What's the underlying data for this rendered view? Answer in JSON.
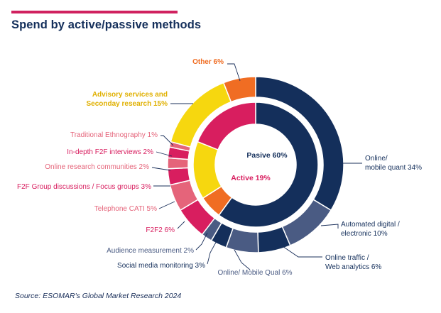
{
  "header": {
    "title": "Spend by active/passive methods",
    "accent_color": "#d0215f"
  },
  "footer": {
    "source": "Source: ESOMAR's Global Market Research 2024"
  },
  "chart_data": {
    "type": "pie",
    "title": "Spend by active/passive methods",
    "inner_ring": [
      {
        "name": "Pasive",
        "value": 60,
        "label": "Pasive 60%",
        "color": "#142f5b"
      },
      {
        "name": "Other",
        "value": 6,
        "label": "",
        "color": "#f06d23"
      },
      {
        "name": "Advisory services",
        "value": 15,
        "label": "",
        "color": "#f6d70f"
      },
      {
        "name": "Active",
        "value": 19,
        "label": "Active 19%",
        "color": "#d81e5f"
      }
    ],
    "outer_ring": [
      {
        "name": "Online/ mobile quant",
        "value": 34,
        "color": "#142f5b",
        "label_lines": [
          "Online/",
          "mobile quant 34%"
        ],
        "text_color": "#142f5b"
      },
      {
        "name": "Automated digital / electronic",
        "value": 10,
        "color": "#4a5b83",
        "label_lines": [
          "Automated digital /",
          "electronic 10%"
        ],
        "text_color": "#142f5b"
      },
      {
        "name": "Online traffic / Web analytics",
        "value": 6,
        "color": "#142f5b",
        "label_lines": [
          "Online traffic /",
          "Web analytics 6%"
        ],
        "text_color": "#142f5b"
      },
      {
        "name": "Online/ Mobile Qual",
        "value": 6,
        "color": "#4a5b83",
        "label_lines": [
          "Online/ Mobile Qual 6%"
        ],
        "text_color": "#4a5b83"
      },
      {
        "name": "Social media monitoring",
        "value": 3,
        "color": "#142f5b",
        "label_lines": [
          "Social media monitoring 3%"
        ],
        "text_color": "#142f5b"
      },
      {
        "name": "Audience measurement",
        "value": 2,
        "color": "#4a5b83",
        "label_lines": [
          "Audience measurement 2%"
        ],
        "text_color": "#4a5b83"
      },
      {
        "name": "F2F2",
        "value": 6,
        "color": "#d81e5f",
        "label_lines": [
          "F2F2 6%"
        ],
        "text_color": "#d81e5f"
      },
      {
        "name": "Telephone CATI",
        "value": 5,
        "color": "#e5647a",
        "label_lines": [
          "Telephone CATI 5%"
        ],
        "text_color": "#e5647a"
      },
      {
        "name": "F2F Group discussions / Focus groups",
        "value": 3,
        "color": "#d81e5f",
        "label_lines": [
          "F2F Group discussions / Focus groups 3%"
        ],
        "text_color": "#d81e5f"
      },
      {
        "name": "Online research communities",
        "value": 2,
        "color": "#e5647a",
        "label_lines": [
          "Online research communities 2%"
        ],
        "text_color": "#e5647a"
      },
      {
        "name": "In-depth F2F interviews",
        "value": 2,
        "color": "#d81e5f",
        "label_lines": [
          "In-depth F2F interviews 2%"
        ],
        "text_color": "#d81e5f"
      },
      {
        "name": "Traditional Ethnography",
        "value": 1,
        "color": "#e5647a",
        "label_lines": [
          "Traditional Ethnography 1%"
        ],
        "text_color": "#e5647a"
      },
      {
        "name": "Advisory services and Seconday research",
        "value": 15,
        "color": "#f6d70f",
        "label_lines": [
          "Advisory services and",
          "Seconday research 15%"
        ],
        "text_color": "#e0b000"
      },
      {
        "name": "Other",
        "value": 6,
        "color": "#f06d23",
        "label_lines": [
          "Other 6%"
        ],
        "text_color": "#f06d23"
      }
    ]
  }
}
